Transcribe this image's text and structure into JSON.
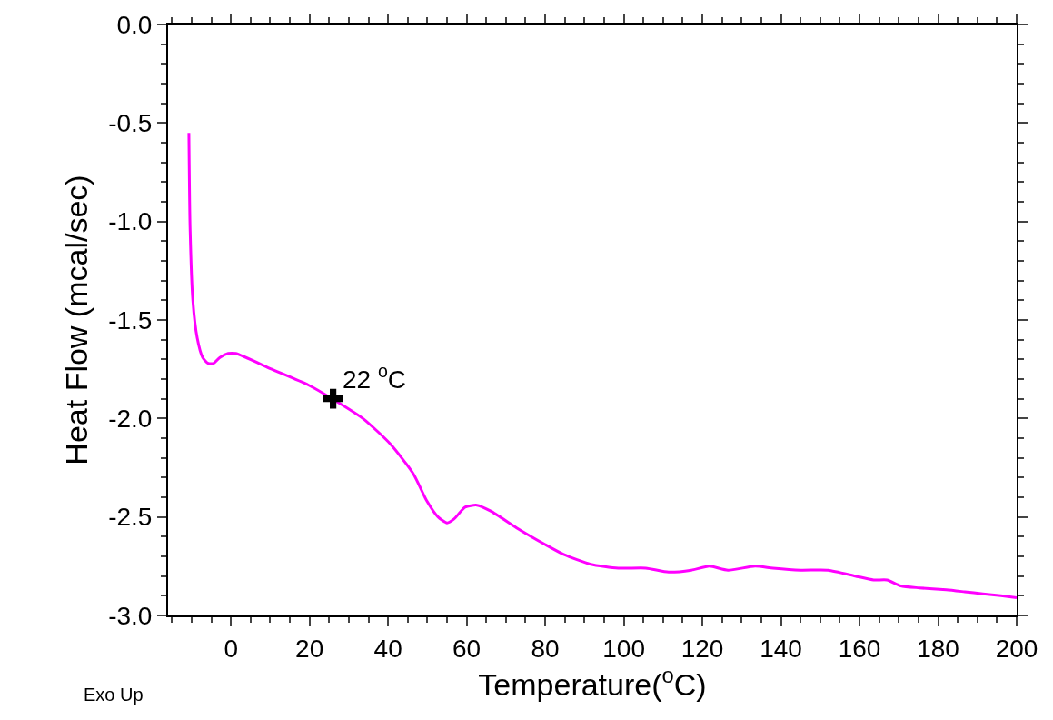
{
  "chart_data": {
    "type": "line",
    "xlabel": "Temperature($^{o}$C)",
    "ylabel": "Heat Flow (mcal/sec)",
    "xlim": [
      -16,
      200
    ],
    "xticks": [
      0,
      20,
      40,
      60,
      80,
      100,
      120,
      140,
      160,
      180,
      200
    ],
    "ylim": [
      -3.0,
      0.0
    ],
    "yticks": [
      {
        "value": -3.0,
        "label": "-3.0"
      },
      {
        "value": -2.5,
        "label": "-2.5"
      },
      {
        "value": -2.0,
        "label": "-2.0"
      },
      {
        "value": -1.5,
        "label": "-1.5"
      },
      {
        "value": -1.0,
        "label": "-1.0"
      },
      {
        "value": -0.5,
        "label": "-0.5"
      },
      {
        "value": 0.0,
        "label": "0.0"
      }
    ],
    "marker": "none",
    "line_style": "solid",
    "series": [
      {
        "color": "#ff00ff",
        "x": [
          -10.7,
          -10.4,
          -9.7,
          -8.6,
          -7.2,
          -5.8,
          -4.4,
          -2.8,
          -0.7,
          1.2,
          10.4,
          19.7,
          25.8,
          33.6,
          40.6,
          46.4,
          49.9,
          52.7,
          55,
          56.8,
          59.6,
          62.6,
          66.1,
          73.1,
          80,
          84.7,
          91.6,
          98.6,
          105.6,
          111.4,
          117.2,
          121.8,
          126.5,
          133.4,
          138,
          145,
          152,
          158.9,
          163.6,
          167,
          170.5,
          175.2,
          182.1,
          186.8,
          191.4,
          196,
          200
        ],
        "values": [
          -0.55,
          -1.03,
          -1.4,
          -1.59,
          -1.69,
          -1.72,
          -1.72,
          -1.69,
          -1.67,
          -1.67,
          -1.75,
          -1.83,
          -1.9,
          -2.0,
          -2.13,
          -2.28,
          -2.42,
          -2.5,
          -2.53,
          -2.51,
          -2.45,
          -2.44,
          -2.47,
          -2.56,
          -2.64,
          -2.69,
          -2.74,
          -2.76,
          -2.76,
          -2.78,
          -2.77,
          -2.75,
          -2.77,
          -2.75,
          -2.76,
          -2.77,
          -2.77,
          -2.8,
          -2.82,
          -2.82,
          -2.85,
          -2.86,
          -2.87,
          -2.88,
          -2.89,
          -2.9,
          -2.91
        ]
      },
      {
        "type": "scatter",
        "marker": "cross",
        "color": "#000000",
        "x": [
          26
        ],
        "values": [
          -1.9
        ]
      }
    ],
    "annotations": [
      {
        "text": "22 $^{o}$C",
        "x": 26,
        "y": -1.9
      },
      "Exo Up"
    ]
  }
}
